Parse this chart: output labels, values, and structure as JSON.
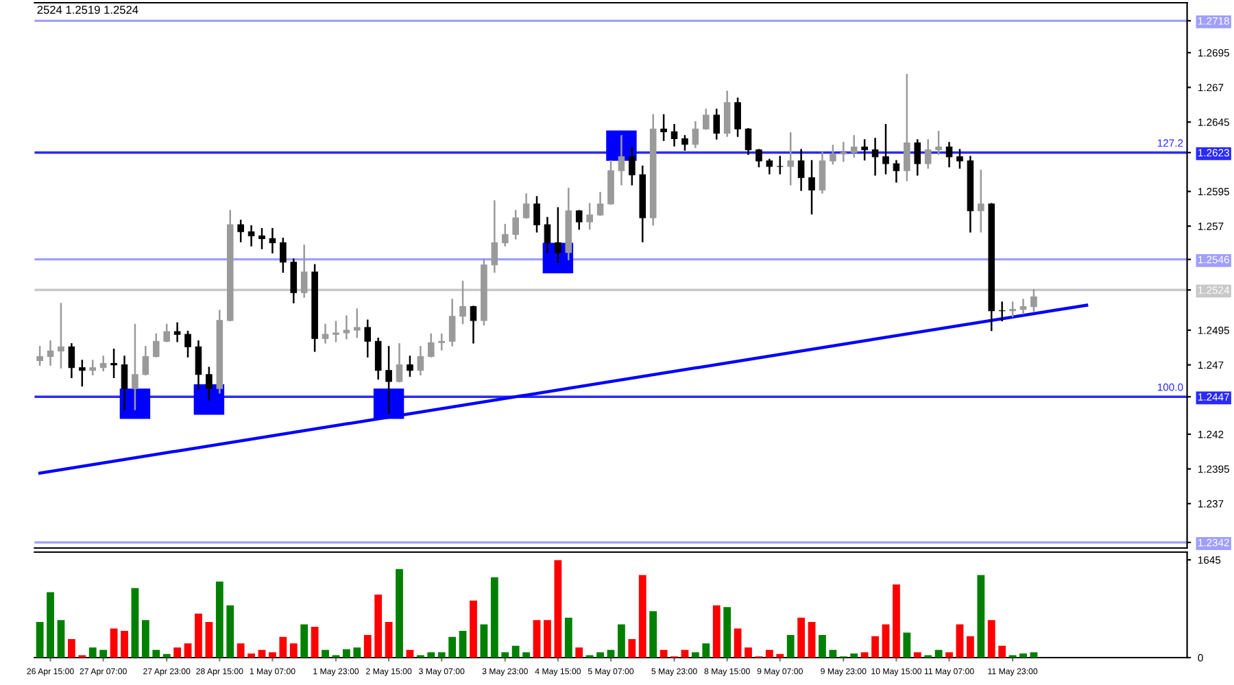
{
  "chart_data": [
    {
      "type": "candlestick",
      "annotations": [
        "2524 1.2519 1.2524",
        {
          "text": "127.2",
          "y": 1.2623
        },
        {
          "text": "100.0",
          "y": 1.2447
        }
      ],
      "ohlc": [
        [
          1.2473,
          1.2483,
          1.247,
          1.2476
        ],
        [
          1.2476,
          1.2487,
          1.247,
          1.248
        ],
        [
          1.248,
          1.2514,
          1.2468,
          1.2483
        ],
        [
          1.2483,
          1.2485,
          1.2461,
          1.2468
        ],
        [
          1.2468,
          1.2473,
          1.2455,
          1.2466
        ],
        [
          1.2466,
          1.2473,
          1.2463,
          1.2468
        ],
        [
          1.2468,
          1.2476,
          1.2466,
          1.2471
        ],
        [
          1.2471,
          1.2481,
          1.2461,
          1.247
        ],
        [
          1.247,
          1.2476,
          1.2438,
          1.2453
        ],
        [
          1.2453,
          1.2499,
          1.2438,
          1.2463
        ],
        [
          1.2463,
          1.2483,
          1.2463,
          1.2476
        ],
        [
          1.2476,
          1.2492,
          1.2476,
          1.2487
        ],
        [
          1.2487,
          1.2499,
          1.2487,
          1.2494
        ],
        [
          1.2494,
          1.25,
          1.2487,
          1.2492
        ],
        [
          1.2492,
          1.2494,
          1.2476,
          1.2483
        ],
        [
          1.2483,
          1.2487,
          1.2453,
          1.2463
        ],
        [
          1.2463,
          1.2468,
          1.2445,
          1.2453
        ],
        [
          1.2453,
          1.2509,
          1.245,
          1.2502
        ],
        [
          1.2502,
          1.2581,
          1.2502,
          1.2571
        ],
        [
          1.2571,
          1.2574,
          1.2559,
          1.2566
        ],
        [
          1.2566,
          1.257,
          1.2556,
          1.2563
        ],
        [
          1.2563,
          1.2568,
          1.2554,
          1.2561
        ],
        [
          1.2561,
          1.2568,
          1.2551,
          1.2558
        ],
        [
          1.2558,
          1.2561,
          1.2537,
          1.2544
        ],
        [
          1.2544,
          1.2546,
          1.2515,
          1.2522
        ],
        [
          1.2522,
          1.2556,
          1.2519,
          1.2537
        ],
        [
          1.2537,
          1.2542,
          1.248,
          1.2489
        ],
        [
          1.2489,
          1.2499,
          1.2486,
          1.2492
        ],
        [
          1.2492,
          1.2501,
          1.2487,
          1.2493
        ],
        [
          1.2493,
          1.2505,
          1.2489,
          1.2495
        ],
        [
          1.2495,
          1.251,
          1.249,
          1.2497
        ],
        [
          1.2497,
          1.2502,
          1.2476,
          1.2487
        ],
        [
          1.2487,
          1.2489,
          1.246,
          1.2466
        ],
        [
          1.2466,
          1.2483,
          1.2435,
          1.2458
        ],
        [
          1.2458,
          1.2485,
          1.2458,
          1.247
        ],
        [
          1.247,
          1.2476,
          1.2462,
          1.2466
        ],
        [
          1.2466,
          1.2483,
          1.2463,
          1.2476
        ],
        [
          1.2476,
          1.2492,
          1.2476,
          1.2486
        ],
        [
          1.2486,
          1.2492,
          1.2481,
          1.2487
        ],
        [
          1.2487,
          1.2517,
          1.2484,
          1.2505
        ],
        [
          1.2505,
          1.253,
          1.25,
          1.2512
        ],
        [
          1.2512,
          1.2512,
          1.2486,
          1.2502
        ],
        [
          1.2502,
          1.2546,
          1.2499,
          1.2542
        ],
        [
          1.2542,
          1.2588,
          1.2537,
          1.2558
        ],
        [
          1.2558,
          1.2571,
          1.2556,
          1.2564
        ],
        [
          1.2564,
          1.2581,
          1.2561,
          1.2576
        ],
        [
          1.2576,
          1.2593,
          1.2576,
          1.2586
        ],
        [
          1.2586,
          1.2591,
          1.2566,
          1.2571
        ],
        [
          1.2571,
          1.2576,
          1.2551,
          1.2558
        ],
        [
          1.2558,
          1.2583,
          1.2544,
          1.2551
        ],
        [
          1.2551,
          1.2597,
          1.2546,
          1.2581
        ],
        [
          1.2581,
          1.2581,
          1.2568,
          1.2573
        ],
        [
          1.2573,
          1.2586,
          1.2568,
          1.2578
        ],
        [
          1.2578,
          1.2594,
          1.2578,
          1.2586
        ],
        [
          1.2586,
          1.2617,
          1.2586,
          1.261
        ],
        [
          1.261,
          1.2635,
          1.26,
          1.262
        ],
        [
          1.262,
          1.2627,
          1.26,
          1.2607
        ],
        [
          1.2607,
          1.2613,
          1.2559,
          1.2576
        ],
        [
          1.2576,
          1.265,
          1.2571,
          1.264
        ],
        [
          1.264,
          1.265,
          1.2632,
          1.2638
        ],
        [
          1.2638,
          1.2643,
          1.2628,
          1.2633
        ],
        [
          1.2633,
          1.2635,
          1.2625,
          1.2629
        ],
        [
          1.2629,
          1.2645,
          1.2627,
          1.264
        ],
        [
          1.264,
          1.2654,
          1.264,
          1.265
        ],
        [
          1.265,
          1.2654,
          1.2633,
          1.2637
        ],
        [
          1.2637,
          1.2667,
          1.2635,
          1.2659
        ],
        [
          1.2659,
          1.2662,
          1.2635,
          1.264
        ],
        [
          1.264,
          1.264,
          1.2622,
          1.2625
        ],
        [
          1.2625,
          1.2625,
          1.2613,
          1.2617
        ],
        [
          1.2617,
          1.2618,
          1.2608,
          1.2613
        ],
        [
          1.2613,
          1.262,
          1.2608,
          1.2613
        ],
        [
          1.2613,
          1.2637,
          1.26,
          1.2617
        ],
        [
          1.2617,
          1.2625,
          1.2596,
          1.2605
        ],
        [
          1.2605,
          1.2617,
          1.2579,
          1.2596
        ],
        [
          1.2596,
          1.2623,
          1.2594,
          1.2617
        ],
        [
          1.2617,
          1.2628,
          1.2615,
          1.2622
        ],
        [
          1.2622,
          1.263,
          1.2617,
          1.2623
        ],
        [
          1.2623,
          1.2635,
          1.262,
          1.2627
        ],
        [
          1.2627,
          1.2632,
          1.2618,
          1.2625
        ],
        [
          1.2625,
          1.2633,
          1.2607,
          1.262
        ],
        [
          1.262,
          1.2643,
          1.2608,
          1.2615
        ],
        [
          1.2615,
          1.2617,
          1.2602,
          1.261
        ],
        [
          1.261,
          1.2679,
          1.2603,
          1.263
        ],
        [
          1.263,
          1.2632,
          1.2607,
          1.2615
        ],
        [
          1.2615,
          1.2632,
          1.2612,
          1.2625
        ],
        [
          1.2625,
          1.2638,
          1.2622,
          1.2627
        ],
        [
          1.2627,
          1.263,
          1.2613,
          1.262
        ],
        [
          1.262,
          1.2625,
          1.2612,
          1.2617
        ],
        [
          1.2617,
          1.262,
          1.2566,
          1.2581
        ],
        [
          1.2581,
          1.261,
          1.2566,
          1.2586
        ],
        [
          1.2586,
          1.2586,
          1.2495,
          1.2509
        ],
        [
          1.2509,
          1.2515,
          1.2502,
          1.2509
        ],
        [
          1.2509,
          1.2515,
          1.2505,
          1.251
        ],
        [
          1.251,
          1.2517,
          1.2507,
          1.2512
        ],
        [
          1.2512,
          1.2524,
          1.2509,
          1.2519
        ],
        null,
        null,
        null,
        null,
        null,
        null,
        null,
        null,
        null,
        null,
        null,
        null,
        null,
        null
      ],
      "series": [
        {
          "type": "line",
          "values": [
            1.2392,
            null,
            null,
            null,
            null,
            null,
            null,
            null,
            null,
            null,
            null,
            null,
            null,
            null,
            null,
            null,
            null,
            null,
            null,
            null,
            null,
            null,
            null,
            null,
            null,
            null,
            null,
            null,
            null,
            null,
            null,
            null,
            null,
            null,
            null,
            null,
            null,
            null,
            null,
            null,
            null,
            null,
            null,
            null,
            null,
            null,
            null,
            null,
            null,
            null,
            null,
            null,
            null,
            null,
            null,
            null,
            null,
            null,
            null,
            null,
            null,
            null,
            null,
            null,
            null,
            null,
            null,
            null,
            null,
            null,
            null,
            null,
            null,
            null,
            null,
            null,
            null,
            null,
            null,
            null,
            null,
            null,
            null,
            null,
            null,
            null,
            null,
            null,
            null,
            null,
            null,
            null,
            null,
            null,
            null,
            null,
            null,
            null,
            null,
            1.2513,
            null,
            null,
            null,
            null,
            null,
            null,
            null,
            null,
            null
          ],
          "color": "#0000ff"
        },
        {
          "type": "scatter",
          "marker": "square",
          "values": [
            null,
            null,
            null,
            null,
            null,
            null,
            null,
            null,
            null,
            1.2442,
            null,
            null,
            null,
            null,
            null,
            null,
            1.2445,
            null,
            null,
            null,
            null,
            null,
            null,
            null,
            null,
            null,
            null,
            null,
            null,
            null,
            null,
            null,
            null,
            1.2442,
            null,
            null,
            null,
            null,
            null,
            null,
            null,
            null,
            null,
            null,
            null,
            null,
            null,
            null,
            null,
            1.2547,
            null,
            null,
            null,
            null,
            null,
            1.2628,
            null,
            null,
            null,
            null,
            null,
            null,
            null,
            null,
            null,
            null,
            null,
            null,
            null,
            null,
            null,
            null,
            null,
            null,
            null,
            null,
            null,
            null,
            null,
            null,
            null,
            null,
            null,
            null,
            null,
            null,
            null,
            null,
            null,
            null,
            null,
            null,
            null,
            null,
            null,
            null,
            null,
            null,
            null,
            null,
            null,
            null,
            null,
            null,
            null,
            null,
            null,
            null,
            null
          ],
          "color": "#0000ff"
        }
      ],
      "ylim": [
        1.2338,
        1.2731
      ],
      "yticks": [
        1.2342,
        1.237,
        1.2395,
        1.242,
        1.2447,
        1.247,
        1.2495,
        1.2524,
        1.2546,
        1.257,
        1.2595,
        1.2623,
        1.2645,
        1.267,
        1.2695,
        1.2718
      ],
      "ref_lines": [
        {
          "axis": "y",
          "value": 1.2718,
          "color": "#9f9fff"
        },
        {
          "axis": "y",
          "value": 1.2623,
          "color": "#2a2aff"
        },
        {
          "axis": "y",
          "value": 1.2546,
          "color": "#9f9fff"
        },
        {
          "axis": "y",
          "value": 1.2524,
          "color": "#c8c8c8"
        },
        {
          "axis": "y",
          "value": 1.2447,
          "color": "#2a2aff"
        },
        {
          "axis": "y",
          "value": 1.2342,
          "color": "#9f9fff"
        }
      ]
    },
    {
      "type": "bar",
      "categories": [
        null,
        "26 Apr 15:00",
        null,
        null,
        null,
        null,
        "27 Apr 07:00",
        null,
        null,
        null,
        null,
        null,
        "27 Apr 23:00",
        null,
        null,
        null,
        null,
        "28 Apr 15:00",
        null,
        null,
        null,
        null,
        "1 May 07:00",
        null,
        null,
        null,
        null,
        null,
        "1 May 23:00",
        null,
        null,
        null,
        null,
        "2 May 15:00",
        null,
        null,
        null,
        null,
        "3 May 07:00",
        null,
        null,
        null,
        null,
        null,
        "3 May 23:00",
        null,
        null,
        null,
        null,
        "4 May 15:00",
        null,
        null,
        null,
        null,
        "5 May 07:00",
        null,
        null,
        null,
        null,
        null,
        "5 May 23:00",
        null,
        null,
        null,
        null,
        "8 May 15:00",
        null,
        null,
        null,
        null,
        "9 May 07:00",
        null,
        null,
        null,
        null,
        null,
        "9 May 23:00",
        null,
        null,
        null,
        null,
        "10 May 15:00",
        null,
        null,
        null,
        null,
        "11 May 07:00",
        null,
        null,
        null,
        null,
        null,
        "11 May 23:00",
        null,
        null,
        null,
        null,
        null,
        null,
        null,
        null,
        null,
        null,
        null,
        null,
        null,
        null,
        null,
        null
      ],
      "values": [
        600,
        1100,
        630,
        310,
        40,
        170,
        130,
        490,
        450,
        1170,
        630,
        130,
        60,
        170,
        240,
        740,
        600,
        1280,
        880,
        240,
        70,
        130,
        90,
        350,
        240,
        560,
        520,
        130,
        40,
        140,
        170,
        380,
        1060,
        600,
        1490,
        130,
        40,
        90,
        90,
        350,
        450,
        960,
        560,
        1350,
        90,
        200,
        90,
        630,
        630,
        1640,
        670,
        170,
        40,
        90,
        130,
        560,
        310,
        1390,
        780,
        130,
        20,
        130,
        90,
        240,
        880,
        850,
        490,
        170,
        20,
        130,
        60,
        380,
        670,
        600,
        380,
        130,
        20,
        70,
        90,
        360,
        560,
        1230,
        420,
        90,
        40,
        130,
        90,
        560,
        360,
        1390,
        630,
        200,
        40,
        70,
        90,
        null,
        null,
        null,
        null,
        null,
        null,
        null,
        null,
        null,
        null,
        null,
        null,
        null,
        null
      ],
      "colors": [
        "#008000",
        "#008000",
        "#008000",
        "#ff0000",
        "#ff0000",
        "#008000",
        "#008000",
        "#ff0000",
        "#ff0000",
        "#008000",
        "#008000",
        "#008000",
        "#008000",
        "#ff0000",
        "#ff0000",
        "#ff0000",
        "#ff0000",
        "#008000",
        "#008000",
        "#ff0000",
        "#ff0000",
        "#ff0000",
        "#ff0000",
        "#ff0000",
        "#ff0000",
        "#008000",
        "#ff0000",
        "#008000",
        "#008000",
        "#008000",
        "#008000",
        "#ff0000",
        "#ff0000",
        "#ff0000",
        "#008000",
        "#ff0000",
        "#008000",
        "#008000",
        "#008000",
        "#008000",
        "#008000",
        "#ff0000",
        "#008000",
        "#008000",
        "#008000",
        "#008000",
        "#008000",
        "#ff0000",
        "#ff0000",
        "#ff0000",
        "#008000",
        "#ff0000",
        "#008000",
        "#008000",
        "#008000",
        "#008000",
        "#ff0000",
        "#ff0000",
        "#008000",
        "#ff0000",
        "#ff0000",
        "#ff0000",
        "#008000",
        "#008000",
        "#ff0000",
        "#008000",
        "#ff0000",
        "#ff0000",
        "#ff0000",
        "#ff0000",
        "#ff0000",
        "#008000",
        "#ff0000",
        "#ff0000",
        "#008000",
        "#008000",
        "#008000",
        "#008000",
        "#ff0000",
        "#ff0000",
        "#ff0000",
        "#ff0000",
        "#008000",
        "#ff0000",
        "#008000",
        "#008000",
        "#ff0000",
        "#ff0000",
        "#ff0000",
        "#008000",
        "#ff0000",
        "#ff0000",
        "#008000",
        "#008000",
        "#008000",
        null,
        null,
        null,
        null,
        null,
        null,
        null,
        null,
        null,
        null,
        null,
        null,
        null,
        null
      ],
      "ylim": [
        0,
        1775
      ],
      "yticks": [
        0,
        1645
      ]
    }
  ]
}
